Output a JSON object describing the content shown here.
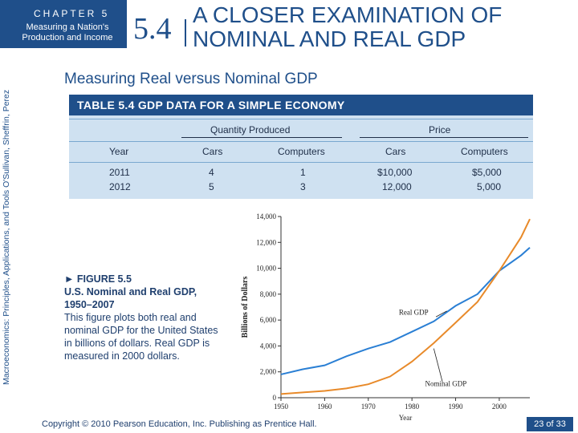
{
  "header": {
    "chapter_label": "CHAPTER 5",
    "chapter_subtitle": "Measuring a Nation's Production and Income",
    "section_number": "5.4",
    "section_title": "A CLOSER EXAMINATION OF NOMINAL AND REAL GDP"
  },
  "side_credit": "Macroeconomics: Principles, Applications, and Tools   O'Sullivan, Sheffrin, Perez",
  "subheading": "Measuring Real versus Nominal GDP",
  "table": {
    "title": "TABLE 5.4  GDP DATA FOR A SIMPLE ECONOMY",
    "group_headers": [
      "Quantity Produced",
      "Price"
    ],
    "columns": [
      "Year",
      "Cars",
      "Computers",
      "Cars",
      "Computers"
    ],
    "rows": [
      [
        "2011",
        "4",
        "1",
        "$10,000",
        "$5,000"
      ],
      [
        "2012",
        "5",
        "3",
        "12,000",
        "5,000"
      ]
    ]
  },
  "figure": {
    "title": "► FIGURE 5.5",
    "subtitle": "U.S. Nominal and Real GDP, 1950–2007",
    "description": "This figure plots both real and nominal GDP for the United States in billions of dollars. Real GDP is measured in 2000 dollars."
  },
  "chart_data": {
    "type": "line",
    "title": "U.S. Nominal and Real GDP, 1950–2007",
    "xlabel": "Year",
    "ylabel": "Billions of Dollars",
    "xlim": [
      1950,
      2007
    ],
    "ylim": [
      0,
      14000
    ],
    "x_ticks": [
      "1950",
      "1960",
      "1970",
      "1980",
      "1990",
      "2000"
    ],
    "y_ticks": [
      "0",
      "2,000",
      "4,000",
      "6,000",
      "8,000",
      "10,000",
      "12,000",
      "14,000"
    ],
    "series": [
      {
        "name": "Real GDP",
        "color": "#2a7fd4",
        "x": [
          1950,
          1955,
          1960,
          1965,
          1970,
          1975,
          1980,
          1985,
          1990,
          1995,
          2000,
          2005,
          2007
        ],
        "values": [
          1800,
          2200,
          2500,
          3200,
          3800,
          4300,
          5100,
          5900,
          7100,
          8000,
          9800,
          11000,
          11600
        ]
      },
      {
        "name": "Nominal GDP",
        "color": "#e88a2a",
        "x": [
          1950,
          1955,
          1960,
          1965,
          1970,
          1975,
          1980,
          1985,
          1990,
          1995,
          2000,
          2005,
          2007
        ],
        "values": [
          290,
          410,
          530,
          720,
          1040,
          1640,
          2790,
          4220,
          5800,
          7400,
          9800,
          12400,
          13800
        ]
      }
    ],
    "annotations": [
      "Real GDP",
      "Nominal GDP"
    ],
    "grid": false
  },
  "footer": {
    "copyright": "Copyright © 2010 Pearson Education, Inc. Publishing as Prentice Hall.",
    "page": "23 of 33"
  }
}
